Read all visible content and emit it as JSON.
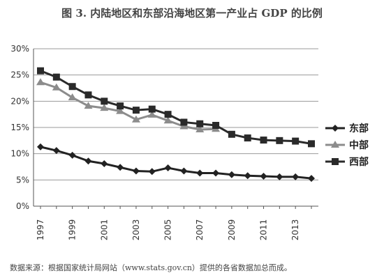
{
  "page": {
    "title": "图 3. 内陆地区和东部沿海地区第一产业占 GDP 的比例",
    "source_note": "数据来源：根据国家统计局网站（www.stats.gov.cn）提供的各省数据加总而成。"
  },
  "chart_data": {
    "type": "line",
    "title": "图 3. 内陆地区和东部沿海地区第一产业占 GDP 的比例",
    "xlabel": "",
    "ylabel": "",
    "x": [
      1997,
      1998,
      1999,
      2000,
      2001,
      2002,
      2003,
      2004,
      2005,
      2006,
      2007,
      2008,
      2009,
      2010,
      2011,
      2012,
      2013,
      2014
    ],
    "x_tick_labels": [
      "1997",
      "1999",
      "2001",
      "2003",
      "2005",
      "2007",
      "2009",
      "2011",
      "2013"
    ],
    "y_tick_labels": [
      "0%",
      "5%",
      "10%",
      "15%",
      "20%",
      "25%",
      "30%"
    ],
    "ylim": [
      0,
      30
    ],
    "y_unit": "%",
    "grid": true,
    "legend_position": "right",
    "series": [
      {
        "name": "东部",
        "marker": "diamond",
        "color": "#222222",
        "values": [
          11.3,
          10.6,
          9.7,
          8.6,
          8.1,
          7.4,
          6.7,
          6.6,
          7.3,
          6.7,
          6.3,
          6.3,
          6.0,
          5.8,
          5.7,
          5.6,
          5.6,
          5.3
        ]
      },
      {
        "name": "中部",
        "marker": "triangle",
        "color": "#8c8c8c",
        "values": [
          23.6,
          22.6,
          20.7,
          19.1,
          18.7,
          18.1,
          16.5,
          17.4,
          16.3,
          15.2,
          14.6,
          14.7,
          null,
          null,
          null,
          null,
          null,
          null
        ]
      },
      {
        "name": "西部",
        "marker": "square",
        "color": "#2a2a2a",
        "values": [
          25.8,
          24.6,
          22.8,
          21.2,
          20.0,
          19.1,
          18.3,
          18.5,
          17.5,
          16.0,
          15.7,
          15.4,
          13.7,
          13.0,
          12.6,
          12.5,
          12.4,
          11.9
        ]
      }
    ]
  }
}
